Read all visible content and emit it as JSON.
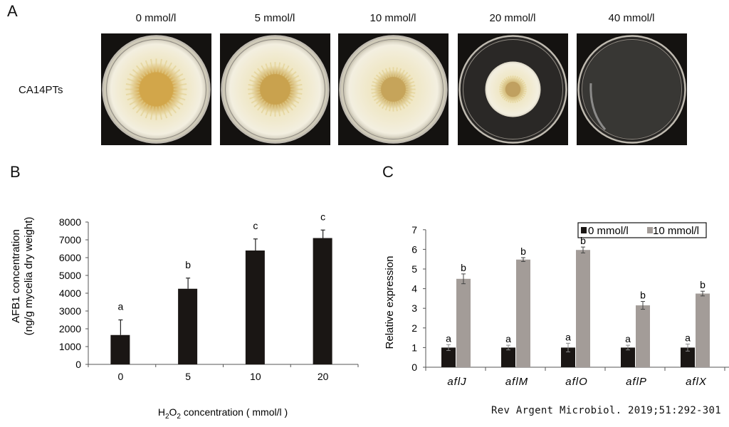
{
  "panel_a": {
    "letter": "A",
    "strain": "CA14PTs",
    "plates": [
      {
        "label": "0 mmol/l",
        "colony_radius": 0.92,
        "core_radius": 0.36,
        "core_color": "#d2a64a"
      },
      {
        "label": "5 mmol/l",
        "colony_radius": 0.92,
        "core_radius": 0.32,
        "core_color": "#c9a24e"
      },
      {
        "label": "10 mmol/l",
        "colony_radius": 0.9,
        "core_radius": 0.26,
        "core_color": "#c6a45a"
      },
      {
        "label": "20 mmol/l",
        "colony_radius": 0.52,
        "core_radius": 0.16,
        "core_color": "#c0a060"
      },
      {
        "label": "40 mmol/l",
        "colony_radius": 0,
        "core_radius": 0,
        "core_color": "#c0a060"
      }
    ]
  },
  "panel_b": {
    "letter": "B",
    "ylabel_line1": "AFB1 concentration",
    "ylabel_line2": "(ng/g mycelia dry weight)",
    "xlabel_prefix": "H",
    "xlabel_sub1": "2",
    "xlabel_mid": "O",
    "xlabel_sub2": "2",
    "xlabel_suffix": " concentration  ( mmol/l )"
  },
  "panel_c": {
    "letter": "C",
    "ylabel": "Relative expression",
    "legend": [
      {
        "label": "0 mmol/l",
        "color": "#1a1614"
      },
      {
        "label": "10 mmol/l",
        "color": "#a39c98"
      }
    ]
  },
  "citation": "Rev Argent Microbiol. 2019;51:292-301",
  "chart_data": [
    {
      "type": "bar",
      "title": "",
      "panel": "B",
      "xlabel": "H2O2 concentration ( mmol/l )",
      "ylabel": "AFB1 concentration (ng/g mycelia dry weight)",
      "categories": [
        "0",
        "5",
        "10",
        "20"
      ],
      "values": [
        1650,
        4250,
        6400,
        7100
      ],
      "error_upper": [
        850,
        600,
        650,
        450
      ],
      "significance": [
        "a",
        "b",
        "c",
        "c"
      ],
      "ylim": [
        0,
        8000
      ],
      "yticks": [
        0,
        1000,
        2000,
        3000,
        4000,
        5000,
        6000,
        7000,
        8000
      ],
      "bar_color": "#1a1614",
      "grid": false,
      "legend_position": "none"
    },
    {
      "type": "bar",
      "title": "",
      "panel": "C",
      "xlabel": "",
      "ylabel": "Relative expression",
      "categories": [
        "aflJ",
        "aflM",
        "aflO",
        "aflP",
        "aflX"
      ],
      "series": [
        {
          "name": "0 mmol/l",
          "color": "#1a1614",
          "values": [
            1.0,
            1.0,
            1.0,
            1.0,
            1.0
          ],
          "error": [
            0.15,
            0.12,
            0.22,
            0.12,
            0.18
          ],
          "significance": [
            "a",
            "a",
            "a",
            "a",
            "a"
          ]
        },
        {
          "name": "10 mmol/l",
          "color": "#a39c98",
          "values": [
            4.5,
            5.48,
            5.97,
            3.15,
            3.75
          ],
          "error": [
            0.25,
            0.1,
            0.15,
            0.2,
            0.12
          ],
          "significance": [
            "b",
            "b",
            "b",
            "b",
            "b"
          ]
        }
      ],
      "ylim": [
        0,
        7
      ],
      "yticks": [
        0,
        1,
        2,
        3,
        4,
        5,
        6,
        7
      ],
      "grid": false,
      "legend_position": "top-right, boxed"
    }
  ]
}
